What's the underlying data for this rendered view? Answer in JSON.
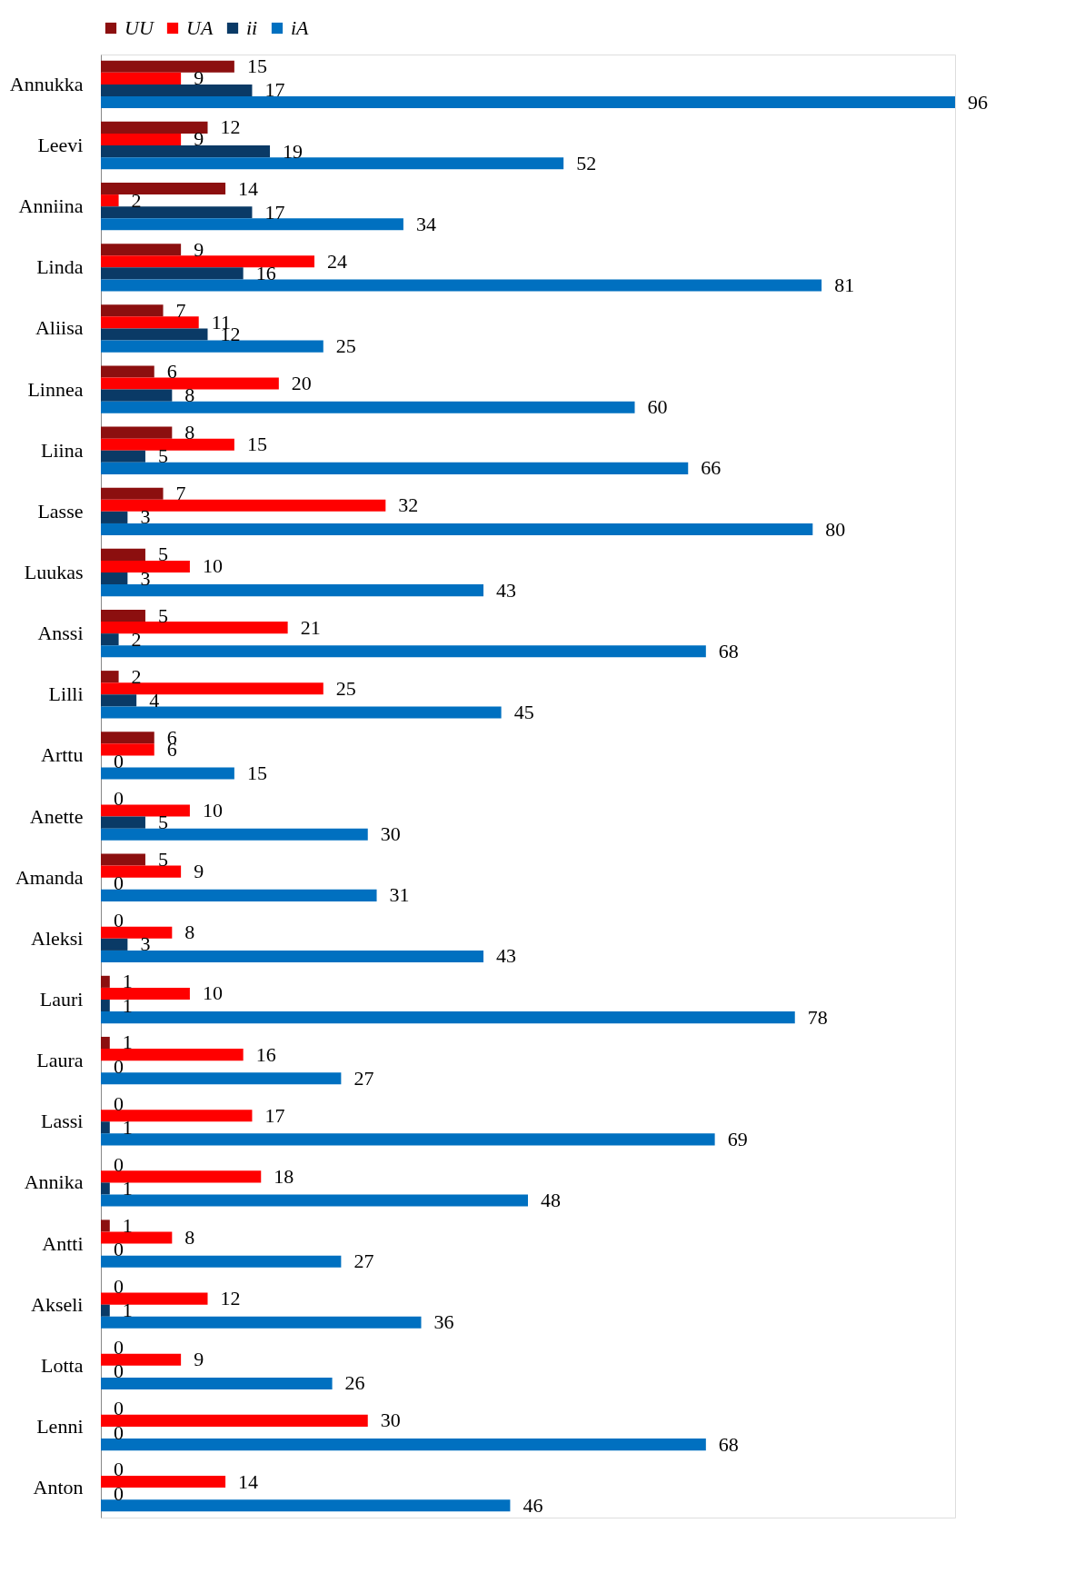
{
  "chart_data": {
    "type": "bar",
    "orientation": "horizontal",
    "data_labels": true,
    "legend": "top",
    "categories": [
      "Annukka",
      "Leevi",
      "Anniina",
      "Linda",
      "Aliisa",
      "Linnea",
      "Liina",
      "Lasse",
      "Luukas",
      "Anssi",
      "Lilli",
      "Arttu",
      "Anette",
      "Amanda",
      "Aleksi",
      "Lauri",
      "Laura",
      "Lassi",
      "Annika",
      "Antti",
      "Akseli",
      "Lotta",
      "Lenni",
      "Anton"
    ],
    "series": [
      {
        "name": "UU",
        "color": "#8c0f0f",
        "values": [
          15,
          12,
          14,
          9,
          7,
          6,
          8,
          7,
          5,
          5,
          2,
          6,
          0,
          5,
          0,
          1,
          1,
          0,
          0,
          1,
          0,
          0,
          0,
          0
        ]
      },
      {
        "name": "UA",
        "color": "#ff0000",
        "values": [
          9,
          9,
          2,
          24,
          11,
          20,
          15,
          32,
          10,
          21,
          25,
          6,
          10,
          9,
          8,
          10,
          16,
          17,
          18,
          8,
          12,
          9,
          30,
          14
        ]
      },
      {
        "name": "ii",
        "color": "#0a3a66",
        "values": [
          17,
          19,
          17,
          16,
          12,
          8,
          5,
          3,
          3,
          2,
          4,
          0,
          5,
          0,
          3,
          1,
          0,
          1,
          1,
          0,
          1,
          0,
          0,
          0
        ]
      },
      {
        "name": "iA",
        "color": "#0070c0",
        "values": [
          96,
          52,
          34,
          81,
          25,
          60,
          66,
          80,
          43,
          68,
          45,
          15,
          30,
          31,
          43,
          78,
          27,
          69,
          48,
          27,
          36,
          26,
          68,
          46
        ]
      }
    ]
  }
}
